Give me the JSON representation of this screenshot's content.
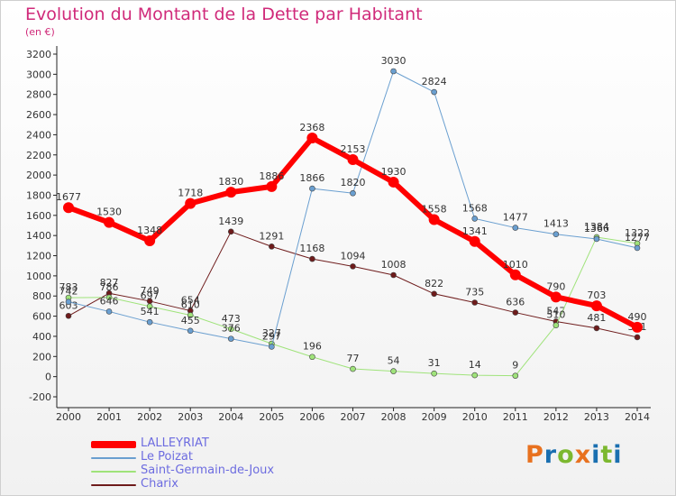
{
  "title": "Evolution du Montant de la Dette par Habitant",
  "subtitle": "(en €)",
  "logo": {
    "text": "Proxiti",
    "colors": [
      "#e8711f",
      "#1a6fb0",
      "#7cb82f",
      "#e8711f",
      "#1a6fb0",
      "#7cb82f",
      "#1a6fb0"
    ]
  },
  "chart_data": {
    "type": "line",
    "title": "Evolution du Montant de la Dette par Habitant",
    "subtitle": "(en €)",
    "xlabel": "",
    "ylabel": "",
    "ylim": [
      -200,
      3200
    ],
    "yticks": [
      -200,
      0,
      200,
      400,
      600,
      800,
      1000,
      1200,
      1400,
      1600,
      1800,
      2000,
      2200,
      2400,
      2600,
      2800,
      3000,
      3200
    ],
    "categories": [
      "2000",
      "2001",
      "2002",
      "2003",
      "2004",
      "2005",
      "2006",
      "2007",
      "2008",
      "2009",
      "2010",
      "2011",
      "2012",
      "2013",
      "2014"
    ],
    "grid": false,
    "legend_position": "bottom-left",
    "series": [
      {
        "name": "Charix",
        "color": "#6e1b1b",
        "line_width": 1,
        "values": [
          603,
          827,
          749,
          654,
          1439,
          1291,
          1168,
          1094,
          1008,
          822,
          735,
          636,
          547,
          481,
          391
        ]
      },
      {
        "name": "Saint-Germain-de-Joux",
        "color": "#9fe37a",
        "line_width": 1,
        "values": [
          783,
          786,
          697,
          610,
          473,
          327,
          196,
          77,
          54,
          31,
          14,
          9,
          510,
          1384,
          1322
        ]
      },
      {
        "name": "Le Poizat",
        "color": "#6a9fd0",
        "line_width": 1,
        "values": [
          742,
          646,
          541,
          455,
          376,
          297,
          1866,
          1820,
          3030,
          2824,
          1568,
          1477,
          1413,
          1366,
          1277
        ]
      },
      {
        "name": "LALLEYRIAT",
        "color": "#ff0000",
        "line_width": 6,
        "values": [
          1677,
          1530,
          1348,
          1718,
          1830,
          1886,
          2368,
          2153,
          1930,
          1558,
          1341,
          1010,
          790,
          703,
          490
        ]
      }
    ],
    "legend": [
      {
        "name": "LALLEYRIAT",
        "color": "#ff0000",
        "text_color": "#6d6ce0"
      },
      {
        "name": "Le Poizat",
        "color": "#6a9fd0",
        "text_color": "#6d6ce0"
      },
      {
        "name": "Saint-Germain-de-Joux",
        "color": "#9fe37a",
        "text_color": "#6d6ce0"
      },
      {
        "name": "Charix",
        "color": "#6e1b1b",
        "text_color": "#6d6ce0"
      }
    ]
  }
}
